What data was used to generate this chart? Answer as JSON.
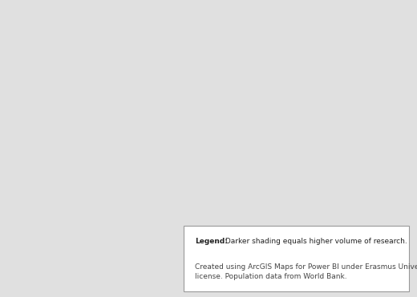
{
  "background_color": "#d9d9d9",
  "ocean_color": "#d9d9d9",
  "default_country_color": "#c2c2c2",
  "border_color": "#f0f0f0",
  "dark_countries": {
    "USA": "#5a5a5a",
    "CAN": "#6a6a6a",
    "AUS": "#5c5c5c",
    "NOR": "#606060",
    "SWE": "#606060",
    "FIN": "#686868",
    "DNK": "#646464",
    "GBR": "#646464",
    "NLD": "#5a5a5a",
    "BEL": "#646464",
    "DEU": "#626262",
    "CHE": "#606060",
    "AUT": "#686868",
    "FRA": "#6a6a6a",
    "ESP": "#727272",
    "ITA": "#727272",
    "PRT": "#747474",
    "GRC": "#7a7a7a",
    "POL": "#787878",
    "CZE": "#7c7c7c",
    "SVK": "#7e7e7e",
    "HUN": "#7e7e7e",
    "ROU": "#828282",
    "BGR": "#848484",
    "HRV": "#828282",
    "SVN": "#808080",
    "LUX": "#6a6a6a",
    "IRL": "#747474",
    "ISL": "#787878",
    "NZL": "#8a8a8a",
    "ISR": "#8a8a8a",
    "ZAF": "#949494"
  },
  "medium_countries": {
    "MEX": "#a6a6a6",
    "BRA": "#ababab",
    "ARG": "#a8a8a8",
    "CHL": "#a6a6a6",
    "COL": "#adadad",
    "VEN": "#afafaf",
    "PER": "#aeaeae",
    "RUS": "#b3b3b3",
    "CHN": "#b0b0b0",
    "JPN": "#ababab",
    "KOR": "#adadad",
    "IND": "#b3b3b3",
    "TUR": "#ababab",
    "IRN": "#b3b3b3",
    "SAU": "#b7b7b7",
    "EGY": "#b7b7b7",
    "NGA": "#b9b9b9",
    "KEN": "#b9b9b9",
    "GHA": "#b9b9b9",
    "MAR": "#b8b8b8",
    "THA": "#b6b6b6",
    "IDN": "#b6b6b6",
    "MYS": "#b4b4b4",
    "PHL": "#b8b8b8",
    "PAK": "#b9b9b9",
    "BGD": "#b9b9b9",
    "UKR": "#b0b0b0",
    "SRB": "#aeaeae",
    "LBY": "#bdbdbd",
    "DZA": "#bdbdbd",
    "TUN": "#bebebe",
    "SDN": "#bebebe",
    "ETH": "#bebebe",
    "TZA": "#bebebe",
    "MOZ": "#bebebe",
    "ZMB": "#bebebe",
    "ZWE": "#bebebe",
    "AGO": "#bebebe",
    "COD": "#bebebe",
    "CMR": "#bebebe",
    "SEN": "#bebebe",
    "CIV": "#bebebe",
    "MLI": "#bebebe",
    "BFA": "#bebebe",
    "NER": "#bebebe",
    "TCD": "#bebebe",
    "SOM": "#bebebe",
    "UGA": "#bebebe",
    "MWI": "#bebebe",
    "VNM": "#b8b8b8",
    "MMR": "#b9b9b9",
    "KHM": "#bababa",
    "LAO": "#bababa",
    "PRY": "#b3b3b3",
    "BOL": "#b2b2b2",
    "URY": "#aeaeae",
    "ECU": "#b0b0b0",
    "GTM": "#b4b4b4",
    "HND": "#b5b5b5",
    "NIC": "#b5b5b5",
    "CRI": "#b4b4b4",
    "PAN": "#b4b4b4",
    "CUB": "#b3b3b3",
    "DOM": "#b5b5b5",
    "JAM": "#b5b5b5",
    "KAZ": "#b8b8b8",
    "UZB": "#b9b9b9",
    "TKM": "#b9b9b9",
    "AFG": "#bababa",
    "IRQ": "#b8b8b8",
    "SYR": "#b8b8b8",
    "JOR": "#b8b8b8",
    "LBN": "#b8b8b8",
    "PSE": "#b8b8b8",
    "YEM": "#bababa",
    "OMN": "#b9b9b9",
    "ARE": "#b8b8b8",
    "QAT": "#b9b9b9",
    "KWT": "#b9b9b9",
    "BHR": "#b9b9b9",
    "AZE": "#b5b5b5",
    "GEO": "#b4b4b4",
    "ARM": "#b4b4b4",
    "MNG": "#bababa",
    "PRK": "#bcbcbc",
    "LKA": "#bcbcbc",
    "NPL": "#bcbcbc",
    "BTN": "#bdbdbd"
  },
  "legend_text_bold": "Legend:",
  "legend_text_main": " Darker shading equals higher volume of research.",
  "legend_text_credit": "Created using ArcGIS Maps for Power BI under Erasmus University Rotterdam\nlicense. Population data from World Bank.",
  "figsize": [
    5.2,
    3.71
  ],
  "dpi": 100
}
